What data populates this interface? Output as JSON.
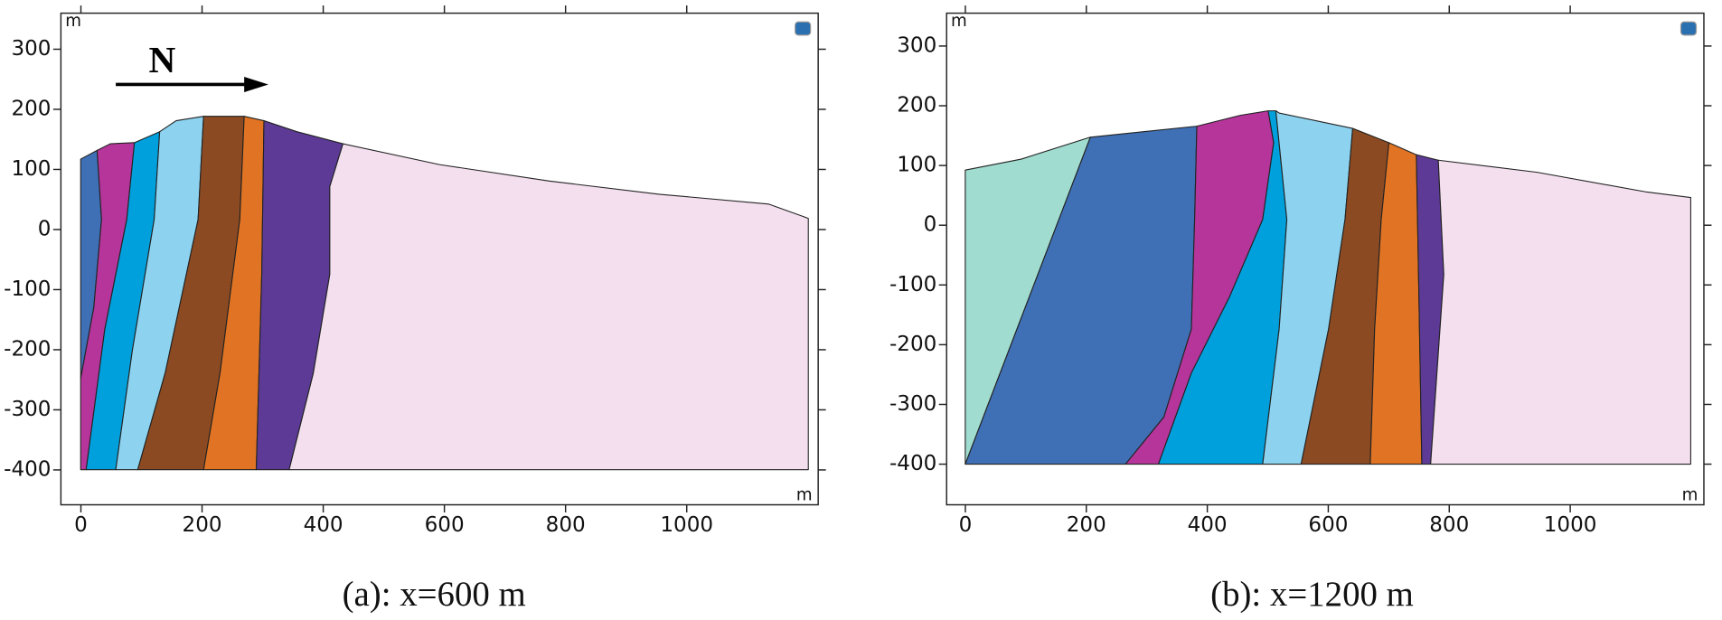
{
  "panels": [
    {
      "caption": "(a): x=600 m",
      "annotation": "N",
      "x_unit": "m",
      "y_unit": "m",
      "xlim": [
        -33,
        1217
      ],
      "ylim": [
        -458,
        360
      ],
      "xticks": [
        0,
        200,
        400,
        600,
        800,
        1000
      ],
      "yticks": [
        300,
        200,
        100,
        0,
        -100,
        -200,
        -300,
        -400
      ]
    },
    {
      "caption": "(b): x=1200 m",
      "x_unit": "m",
      "y_unit": "m",
      "xlim": [
        -31,
        1221
      ],
      "ylim": [
        -468,
        355
      ],
      "xticks": [
        0,
        200,
        400,
        600,
        800,
        1000
      ],
      "yticks": [
        300,
        200,
        100,
        0,
        -100,
        -200,
        -300,
        -400
      ]
    }
  ]
}
